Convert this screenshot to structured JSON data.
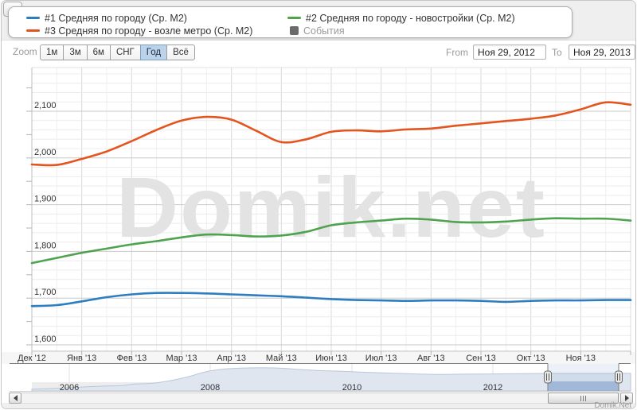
{
  "watermark": "Domik.net",
  "attribution": "Domik.Net",
  "legend": {
    "items": [
      {
        "label": "#1 Средняя по городу (Ср. М2)",
        "color": "#2d7ec0",
        "symbol": "line"
      },
      {
        "label": "#3 Средняя по городу - возле метро (Ср. М2)",
        "color": "#e4541f",
        "symbol": "line"
      },
      {
        "label": "#2 Средняя по городу - новостройки (Ср. М2)",
        "color": "#4fa34f",
        "symbol": "line"
      },
      {
        "label": "События",
        "color": "#6b6b6b",
        "symbol": "box"
      }
    ]
  },
  "toolbar": {
    "zoom_label": "Zoom",
    "buttons": [
      "1м",
      "3м",
      "6м",
      "СНГ",
      "Год",
      "Всё"
    ],
    "active_button": "Год",
    "from_label": "From",
    "from_value": "Ноя 29, 2012",
    "to_label": "To",
    "to_value": "Ноя 29, 2013"
  },
  "chart_data": {
    "type": "line",
    "title": "",
    "x_unit": "half-month samples from Ноя 29, 2012 to Ноя 29, 2013",
    "x_tick_labels": [
      "Дек '12",
      "Янв '13",
      "Фев '13",
      "Мар '13",
      "Апр '13",
      "Май '13",
      "Июн '13",
      "Июл '13",
      "Авг '13",
      "Сен '13",
      "Окт '13",
      "Ноя '13"
    ],
    "y_ticks": [
      1600,
      1700,
      1800,
      1900,
      2000,
      2100
    ],
    "y_tick_labels": [
      "1,600",
      "1,700",
      "1,800",
      "1,900",
      "2,000",
      "2,100"
    ],
    "ylim": [
      1586,
      2193
    ],
    "grid": "major+minor",
    "legend_position": "top",
    "series": [
      {
        "name": "#1 Средняя по городу (Ср. М2)",
        "color": "#2d7ec0",
        "values": [
          1683,
          1685,
          1693,
          1702,
          1708,
          1711,
          1711,
          1710,
          1708,
          1706,
          1704,
          1701,
          1698,
          1696,
          1695,
          1694,
          1695,
          1695,
          1694,
          1692,
          1694,
          1695,
          1695,
          1696,
          1696
        ]
      },
      {
        "name": "#2 Средняя по городу - новостройки (Ср. М2)",
        "color": "#4fa34f",
        "values": [
          1775,
          1786,
          1797,
          1806,
          1815,
          1822,
          1830,
          1836,
          1835,
          1832,
          1834,
          1842,
          1856,
          1862,
          1866,
          1870,
          1868,
          1863,
          1862,
          1864,
          1868,
          1871,
          1870,
          1870,
          1866
        ]
      },
      {
        "name": "#3 Средняя по городу - возле метро (Ср. М2)",
        "color": "#e4541f",
        "values": [
          1986,
          1985,
          1998,
          2014,
          2036,
          2060,
          2080,
          2088,
          2082,
          2058,
          2034,
          2040,
          2056,
          2059,
          2057,
          2061,
          2063,
          2069,
          2074,
          2079,
          2084,
          2091,
          2104,
          2119,
          2114
        ]
      }
    ]
  },
  "navigator": {
    "year_labels": [
      "2006",
      "2008",
      "2010",
      "2012"
    ],
    "selected_range": {
      "from": "Ноя 29, 2012",
      "to": "Ноя 29, 2013"
    },
    "area_profile": [
      [
        0,
        0.07
      ],
      [
        0.04,
        0.1
      ],
      [
        0.08,
        0.15
      ],
      [
        0.12,
        0.19
      ],
      [
        0.15,
        0.21
      ],
      [
        0.17,
        0.27
      ],
      [
        0.2,
        0.3
      ],
      [
        0.23,
        0.4
      ],
      [
        0.26,
        0.55
      ],
      [
        0.29,
        0.75
      ],
      [
        0.32,
        0.86
      ],
      [
        0.35,
        0.9
      ],
      [
        0.39,
        0.91
      ],
      [
        0.42,
        0.89
      ],
      [
        0.45,
        0.84
      ],
      [
        0.48,
        0.8
      ],
      [
        0.52,
        0.77
      ],
      [
        0.56,
        0.73
      ],
      [
        0.6,
        0.7
      ],
      [
        0.64,
        0.67
      ],
      [
        0.68,
        0.65
      ],
      [
        0.72,
        0.66
      ],
      [
        0.77,
        0.67
      ],
      [
        0.82,
        0.68
      ],
      [
        0.88,
        0.69
      ],
      [
        1,
        0.69
      ]
    ]
  }
}
